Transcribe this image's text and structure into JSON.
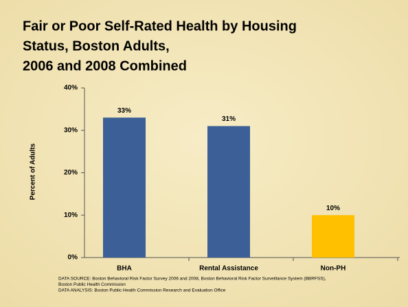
{
  "chart_data": {
    "type": "bar",
    "title_lines": [
      "Fair or Poor Self-Rated Health by Housing",
      "Status, Boston Adults,",
      "2006 and 2008 Combined"
    ],
    "y_label": "Percent of Adults",
    "categories": [
      "BHA",
      "Rental Assistance",
      "Non-PH"
    ],
    "values": [
      33,
      31,
      10
    ],
    "value_labels": [
      "33%",
      "31%",
      "10%"
    ],
    "colors": [
      "#3b5f96",
      "#3b5f96",
      "#ffc000"
    ],
    "ylim": [
      0,
      40
    ],
    "yticks": [
      {
        "value": 0,
        "label": "0%"
      },
      {
        "value": 10,
        "label": "10%"
      },
      {
        "value": 20,
        "label": "20%"
      },
      {
        "value": 30,
        "label": "30%"
      },
      {
        "value": 40,
        "label": "40%"
      }
    ],
    "source_lines": [
      "DATA SOURCE: Boston Behavioral Risk Factor Survey 2006 and 2008, Boston Behavioral Risk Factor Surveillance System (BBRFSS),",
      "Boston Public Health Commission",
      "DATA ANALYSIS:  Boston Public Health Commission Research and Evaluation Office"
    ]
  }
}
